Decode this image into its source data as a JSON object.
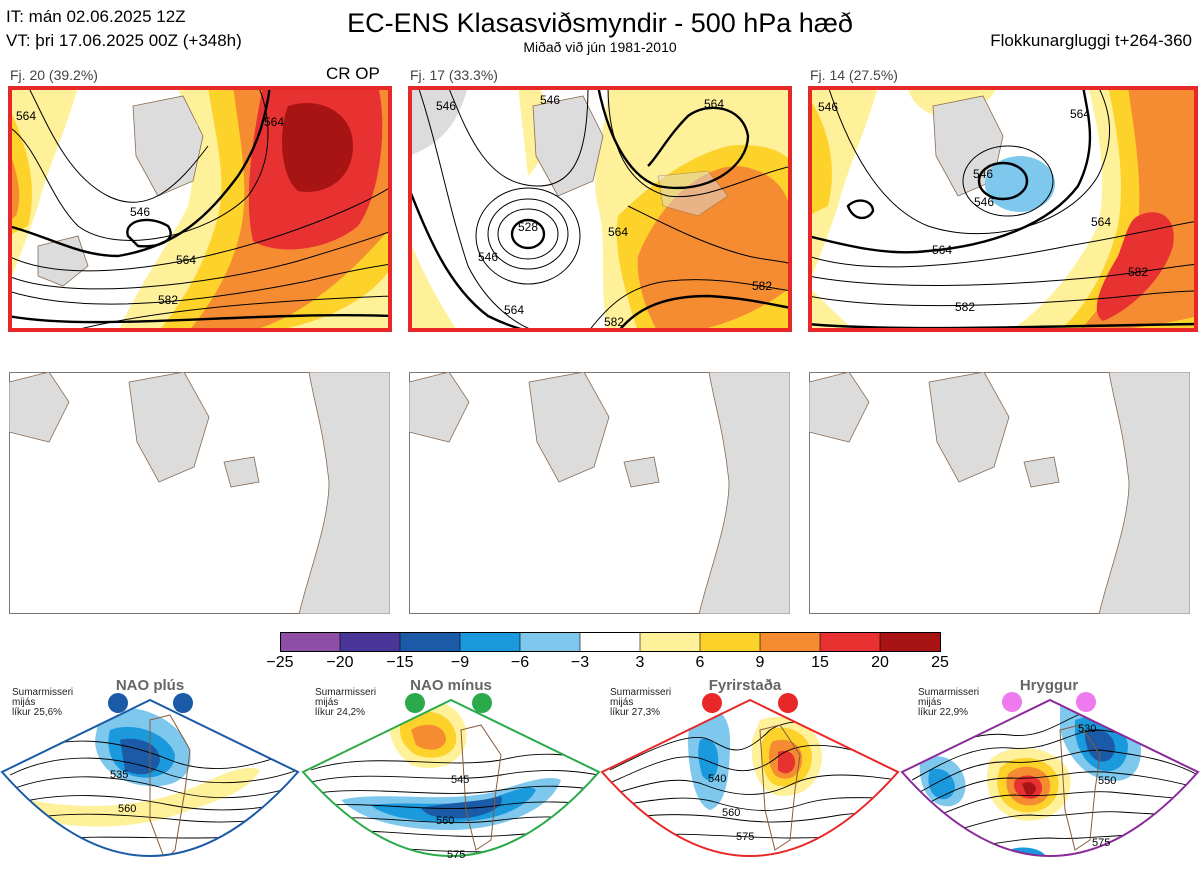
{
  "header": {
    "it_line": "IT: mán 02.06.2025 12Z",
    "vt_line": "VT: þri 17.06.2025 00Z  (+348h)",
    "title": "EC-ENS Klasasviðsmyndir - 500 hPa hæð",
    "subtitle": "Miðað við jún 1981-2010",
    "window": "Flokkunargluggi t+264-360"
  },
  "clusters": [
    {
      "label": "Fj. 20 (39.2%)",
      "op": "CR OP",
      "contours": [
        "564",
        "546",
        "564",
        "582",
        "564"
      ]
    },
    {
      "label": "Fj. 17 (33.3%)",
      "op": "",
      "contours": [
        "546",
        "546",
        "528",
        "546",
        "564",
        "564",
        "582",
        "582",
        "564"
      ]
    },
    {
      "label": "Fj. 14 (27.5%)",
      "op": "",
      "contours": [
        "546",
        "564",
        "546",
        "564",
        "582",
        "564",
        "582",
        "546"
      ]
    }
  ],
  "colorbar": {
    "ticks": [
      "−25",
      "−20",
      "−15",
      "−9",
      "−6",
      "−3",
      "3",
      "6",
      "9",
      "15",
      "20",
      "25"
    ],
    "colors": [
      "#8e4ea6",
      "#4a3699",
      "#1a5aa6",
      "#1a99dd",
      "#7ec8ee",
      "#ffffff",
      "#fff19a",
      "#fdd22a",
      "#f58c32",
      "#e83232",
      "#a81414"
    ]
  },
  "regimes": [
    {
      "title": "NAO plús",
      "note": [
        "Sumarmisseri",
        "mijás",
        "líkur 25,6%"
      ],
      "dot_color": "#1a5aa6",
      "frame_color": "#1a5aa6",
      "labels": [
        "535",
        "560"
      ]
    },
    {
      "title": "NAO mínus",
      "note": [
        "Sumarmisseri",
        "mijás",
        "líkur 24,2%"
      ],
      "dot_color": "#2aaa4a",
      "frame_color": "#2aaa4a",
      "labels": [
        "545",
        "560",
        "575"
      ]
    },
    {
      "title": "Fyrirstaða",
      "note": [
        "Sumarmisseri",
        "mijás",
        "líkur 27,3%"
      ],
      "dot_color": "#e82828",
      "frame_color": "#e82828",
      "labels": [
        "540",
        "560",
        "575"
      ]
    },
    {
      "title": "Hryggur",
      "note": [
        "Sumarmisseri",
        "mijás",
        "líkur 22,9%"
      ],
      "dot_color": "#ee7aee",
      "frame_color": "#8a2a9a",
      "labels": [
        "530",
        "550",
        "575"
      ]
    }
  ]
}
